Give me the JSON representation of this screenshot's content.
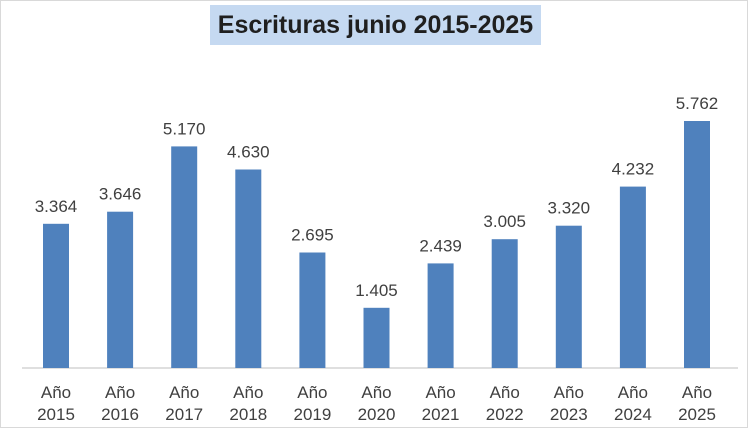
{
  "chart_data": {
    "type": "bar",
    "title": "Escrituras junio 2015-2025",
    "categories": [
      [
        "Año",
        "2015"
      ],
      [
        "Año",
        "2016"
      ],
      [
        "Año",
        "2017"
      ],
      [
        "Año",
        "2018"
      ],
      [
        "Año",
        "2019"
      ],
      [
        "Año",
        "2020"
      ],
      [
        "Año",
        "2021"
      ],
      [
        "Año",
        "2022"
      ],
      [
        "Año",
        "2023"
      ],
      [
        "Año",
        "2024"
      ],
      [
        "Año",
        "2025"
      ]
    ],
    "values": [
      3364,
      3646,
      5170,
      4630,
      2695,
      1405,
      2439,
      3005,
      3320,
      4232,
      5762
    ],
    "value_labels": [
      "3.364",
      "3.646",
      "5.170",
      "4.630",
      "2.695",
      "1.405",
      "2.439",
      "3.005",
      "3.320",
      "4.232",
      "5.762"
    ],
    "ylim": [
      0,
      5762
    ],
    "grid": false,
    "legend": "none",
    "bar_color": "#4f81bd",
    "title_background": "#c5d9f1"
  }
}
